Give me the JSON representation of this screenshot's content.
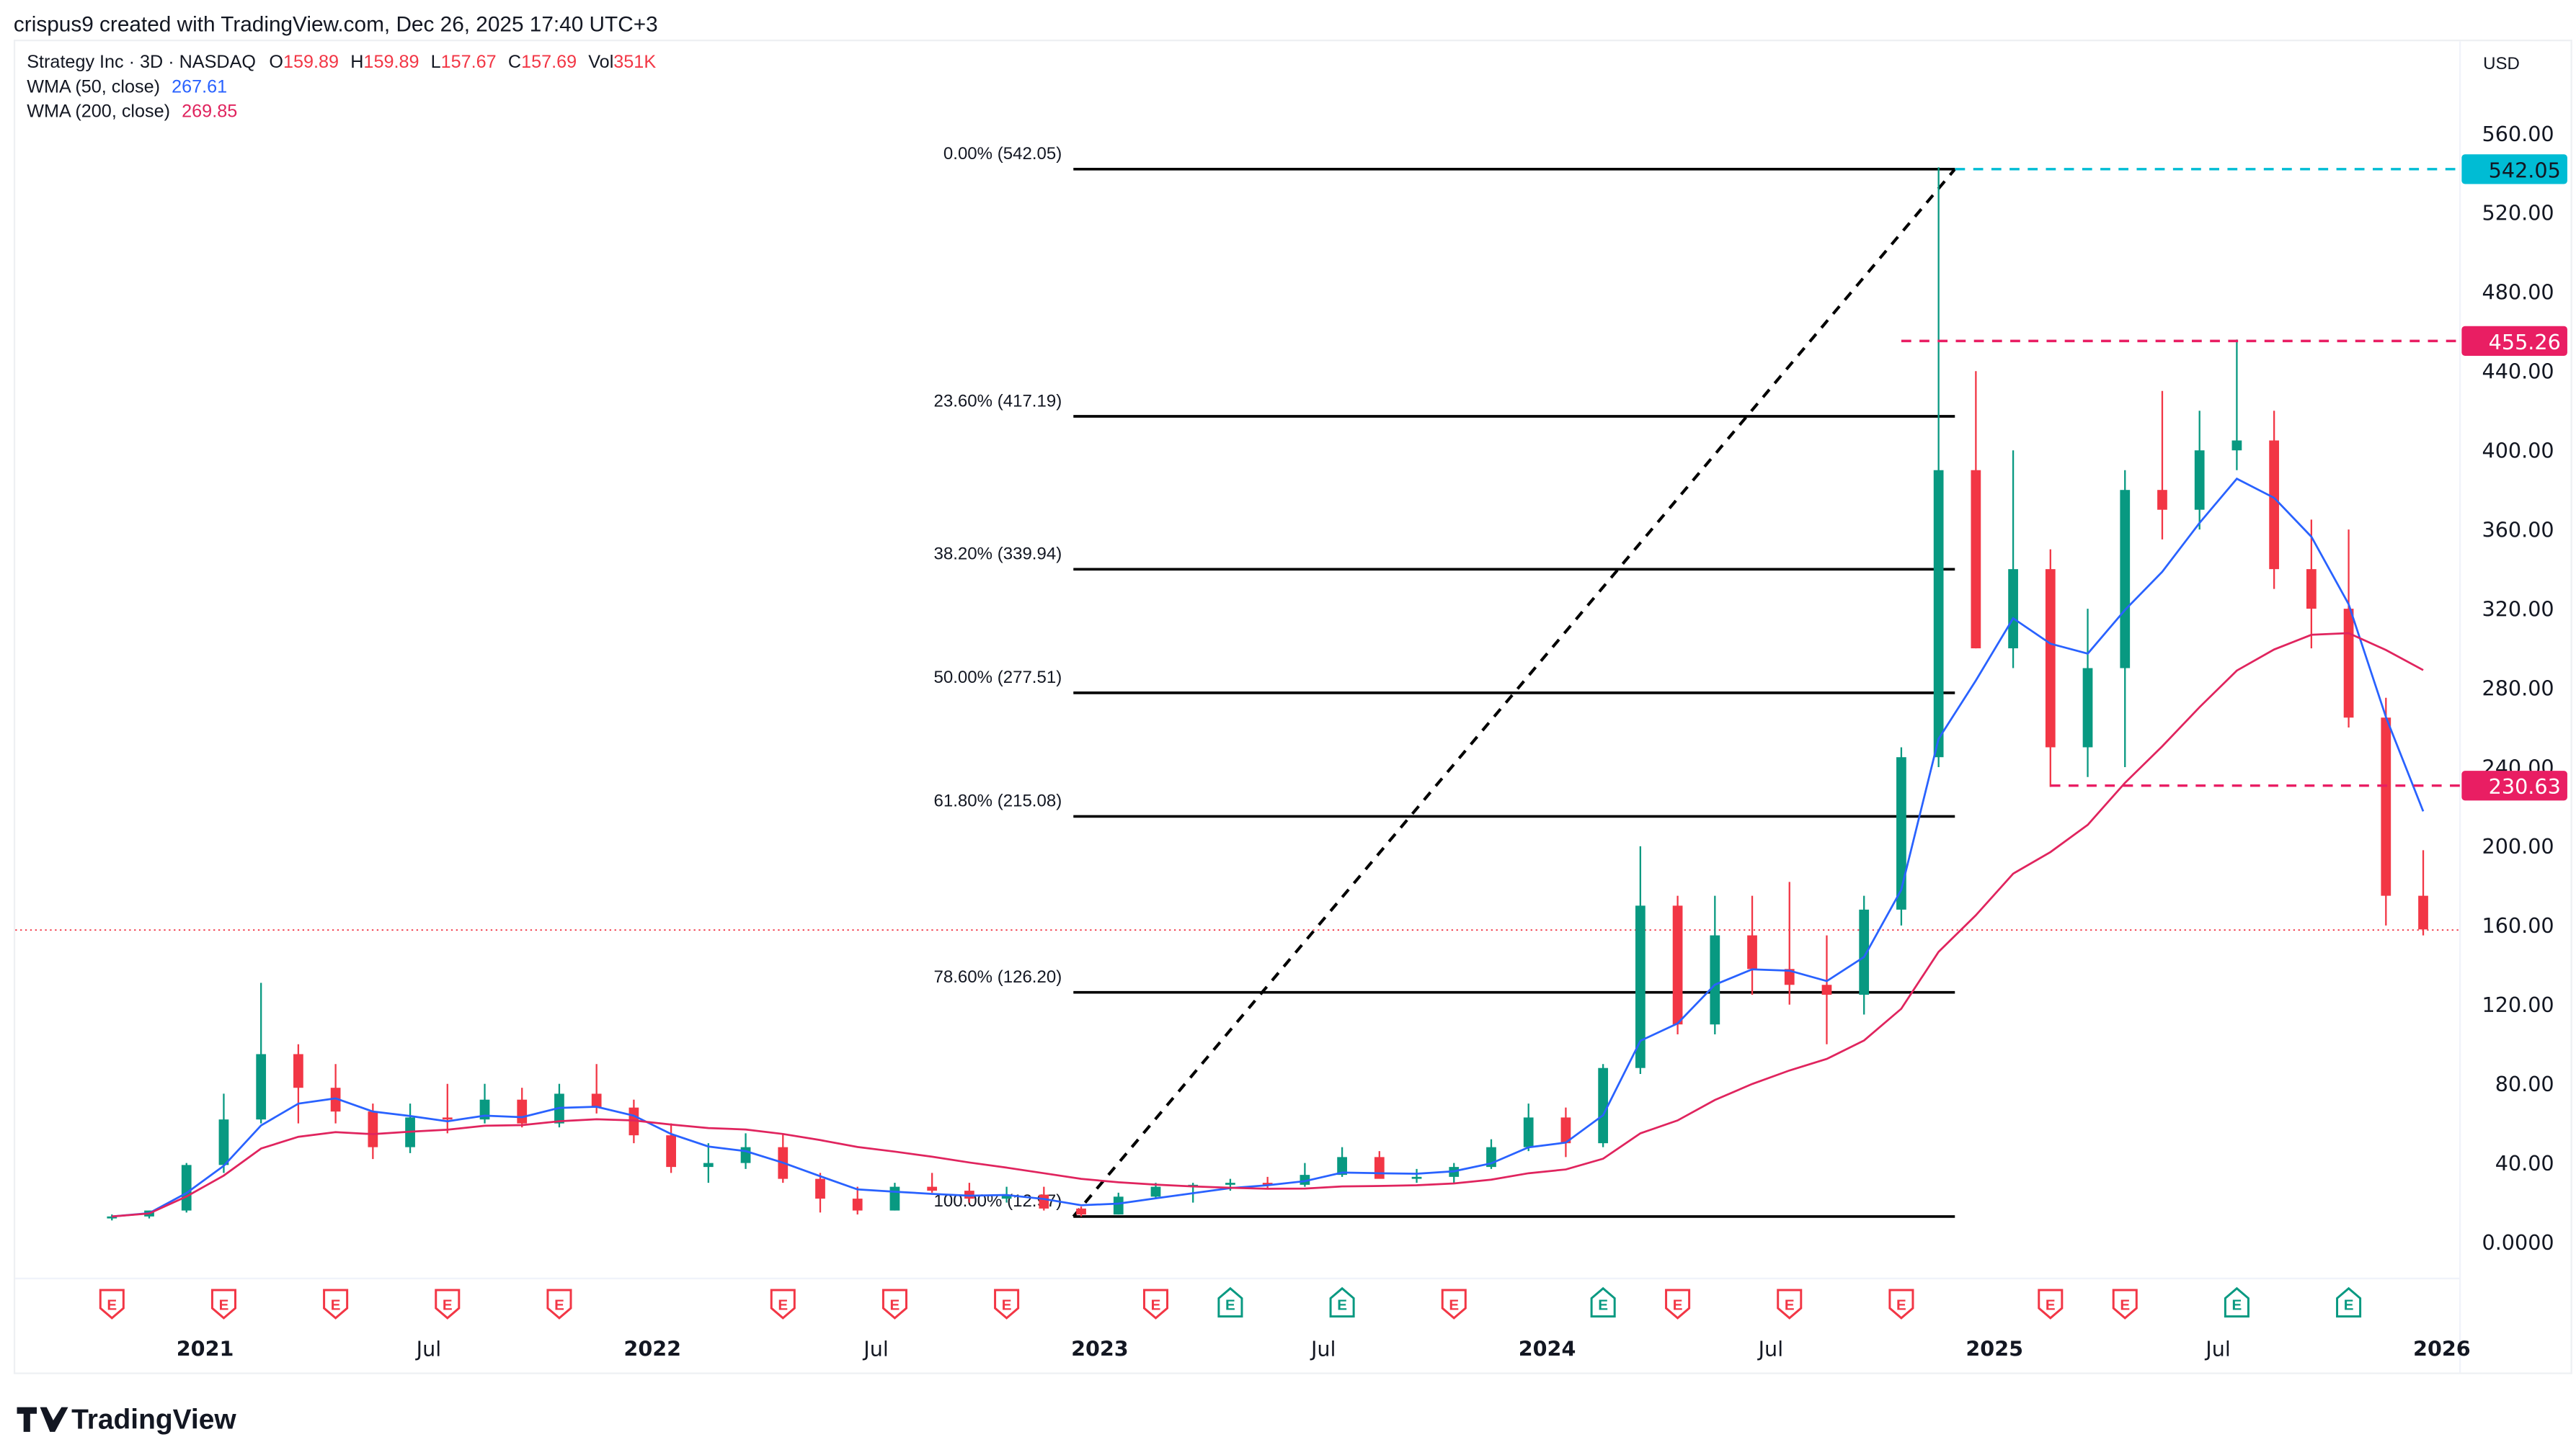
{
  "header": {
    "credit": "crispus9 created with TradingView.com, Dec 26, 2025 17:40 UTC+3",
    "symbol": "Strategy Inc · 3D · NASDAQ",
    "o_label": "O",
    "o": "159.89",
    "h_label": "H",
    "h": "159.89",
    "l_label": "L",
    "l": "157.67",
    "c_label": "C",
    "c": "157.69",
    "vol_label": "Vol",
    "vol": "351K",
    "wma50_label": "WMA (50, close)",
    "wma50_value": "267.61",
    "wma200_label": "WMA (200, close)",
    "wma200_value": "269.85",
    "currency": "USD"
  },
  "logo": {
    "text": "TradingView"
  },
  "colors": {
    "up": "#089981",
    "down": "#f23645",
    "wma50": "#2962ff",
    "wma200": "#e0245e",
    "fib_top_badge": "#00bcd4",
    "level_badge": "#e91e63"
  },
  "chart_data": {
    "type": "candlestick",
    "title": "",
    "ylim": [
      -10,
      575
    ],
    "y_ticks": [
      "560.00",
      "520.00",
      "480.00",
      "440.00",
      "400.00",
      "360.00",
      "320.00",
      "280.00",
      "240.00",
      "200.00",
      "160.00",
      "120.00",
      "80.00",
      "40.00",
      "0.0000"
    ],
    "y_tick_values": [
      560,
      520,
      480,
      440,
      400,
      360,
      320,
      280,
      240,
      200,
      160,
      120,
      80,
      40,
      0
    ],
    "x_ticks": [
      {
        "label": "2021",
        "date": "2021-01",
        "bold": true
      },
      {
        "label": "Jul",
        "date": "2021-07",
        "bold": false
      },
      {
        "label": "2022",
        "date": "2022-01",
        "bold": true
      },
      {
        "label": "Jul",
        "date": "2022-07",
        "bold": false
      },
      {
        "label": "2023",
        "date": "2023-01",
        "bold": true
      },
      {
        "label": "Jul",
        "date": "2023-07",
        "bold": false
      },
      {
        "label": "2024",
        "date": "2024-01",
        "bold": true
      },
      {
        "label": "Jul",
        "date": "2024-07",
        "bold": false
      },
      {
        "label": "2025",
        "date": "2025-01",
        "bold": true
      },
      {
        "label": "Jul",
        "date": "2025-07",
        "bold": false
      },
      {
        "label": "2026",
        "date": "2026-01",
        "bold": true
      }
    ],
    "ohlc": [
      [
        "2020-10",
        12,
        14,
        11,
        13
      ],
      [
        "2020-11",
        13,
        16,
        12,
        16
      ],
      [
        "2020-12",
        16,
        40,
        15,
        39
      ],
      [
        "2021-01",
        39,
        75,
        35,
        62
      ],
      [
        "2021-02",
        62,
        131,
        60,
        95
      ],
      [
        "2021-03",
        95,
        100,
        60,
        78
      ],
      [
        "2021-04",
        78,
        90,
        60,
        66
      ],
      [
        "2021-05",
        66,
        70,
        42,
        48
      ],
      [
        "2021-06",
        48,
        70,
        45,
        63
      ],
      [
        "2021-07",
        63,
        80,
        55,
        62
      ],
      [
        "2021-08",
        62,
        80,
        60,
        72
      ],
      [
        "2021-09",
        72,
        78,
        58,
        60
      ],
      [
        "2021-10",
        60,
        80,
        58,
        75
      ],
      [
        "2021-11",
        75,
        90,
        65,
        68
      ],
      [
        "2021-12",
        68,
        72,
        50,
        54
      ],
      [
        "2022-01",
        54,
        60,
        35,
        38
      ],
      [
        "2022-02",
        38,
        50,
        30,
        40
      ],
      [
        "2022-03",
        40,
        55,
        37,
        48
      ],
      [
        "2022-04",
        48,
        55,
        30,
        32
      ],
      [
        "2022-05",
        32,
        35,
        15,
        22
      ],
      [
        "2022-06",
        22,
        28,
        14,
        16
      ],
      [
        "2022-07",
        16,
        30,
        16,
        28
      ],
      [
        "2022-08",
        28,
        35,
        25,
        26
      ],
      [
        "2022-09",
        26,
        30,
        20,
        22
      ],
      [
        "2022-10",
        22,
        28,
        20,
        24
      ],
      [
        "2022-11",
        24,
        28,
        16,
        17
      ],
      [
        "2022-12",
        17,
        18,
        13,
        14
      ],
      [
        "2023-01",
        14,
        25,
        14,
        23
      ],
      [
        "2023-02",
        23,
        30,
        22,
        28
      ],
      [
        "2023-03",
        28,
        30,
        20,
        29
      ],
      [
        "2023-04",
        29,
        32,
        26,
        30
      ],
      [
        "2023-05",
        30,
        33,
        27,
        29
      ],
      [
        "2023-06",
        29,
        40,
        28,
        34
      ],
      [
        "2023-07",
        34,
        48,
        33,
        43
      ],
      [
        "2023-08",
        43,
        46,
        33,
        32
      ],
      [
        "2023-09",
        32,
        37,
        30,
        33
      ],
      [
        "2023-10",
        33,
        40,
        30,
        38
      ],
      [
        "2023-11",
        38,
        52,
        37,
        48
      ],
      [
        "2023-12",
        48,
        70,
        46,
        63
      ],
      [
        "2024-01",
        63,
        68,
        43,
        50
      ],
      [
        "2024-02",
        50,
        90,
        48,
        88
      ],
      [
        "2024-03",
        88,
        200,
        85,
        170
      ],
      [
        "2024-04",
        170,
        175,
        105,
        110
      ],
      [
        "2024-05",
        110,
        175,
        105,
        155
      ],
      [
        "2024-06",
        155,
        175,
        125,
        138
      ],
      [
        "2024-07",
        138,
        182,
        120,
        130
      ],
      [
        "2024-08",
        130,
        155,
        100,
        125
      ],
      [
        "2024-09",
        125,
        175,
        115,
        168
      ],
      [
        "2024-10",
        168,
        250,
        160,
        245
      ],
      [
        "2024-11",
        245,
        543,
        240,
        390
      ],
      [
        "2024-12",
        390,
        440,
        300,
        300
      ],
      [
        "2025-01",
        300,
        400,
        290,
        340
      ],
      [
        "2025-02",
        340,
        350,
        230,
        250
      ],
      [
        "2025-03",
        250,
        320,
        235,
        290
      ],
      [
        "2025-04",
        290,
        390,
        240,
        380
      ],
      [
        "2025-05",
        380,
        430,
        355,
        370
      ],
      [
        "2025-06",
        370,
        420,
        360,
        400
      ],
      [
        "2025-07",
        400,
        456,
        390,
        405
      ],
      [
        "2025-08",
        405,
        420,
        330,
        340
      ],
      [
        "2025-09",
        340,
        365,
        300,
        320
      ],
      [
        "2025-10",
        320,
        360,
        260,
        265
      ],
      [
        "2025-11",
        265,
        275,
        160,
        175
      ],
      [
        "2025-12",
        175,
        198,
        155,
        158
      ]
    ],
    "last_price": 157.69,
    "fib_retracement": {
      "from": {
        "date": "2022-12",
        "price": 12.97
      },
      "to": {
        "date": "2024-11",
        "price": 542.05
      },
      "levels": [
        {
          "label": "0.00% (542.05)",
          "price": 542.05
        },
        {
          "label": "23.60% (417.19)",
          "price": 417.19
        },
        {
          "label": "38.20% (339.94)",
          "price": 339.94
        },
        {
          "label": "50.00% (277.51)",
          "price": 277.51
        },
        {
          "label": "61.80% (215.08)",
          "price": 215.08
        },
        {
          "label": "78.60% (126.20)",
          "price": 126.2
        },
        {
          "label": "100.00% (12.97)",
          "price": 12.97
        }
      ]
    },
    "horizontal_levels": [
      {
        "label": "542.05",
        "price": 542.05,
        "color": "#00bcd4",
        "from": "2024-11"
      },
      {
        "label": "455.26",
        "price": 455.26,
        "color": "#e91e63",
        "from": "2024-10"
      },
      {
        "label": "230.63",
        "price": 230.63,
        "color": "#e91e63",
        "from": "2025-02"
      }
    ],
    "earnings": [
      {
        "date": "2020-10",
        "beat": false
      },
      {
        "date": "2021-01",
        "beat": false
      },
      {
        "date": "2021-04",
        "beat": false
      },
      {
        "date": "2021-07",
        "beat": false
      },
      {
        "date": "2021-10",
        "beat": false
      },
      {
        "date": "2022-04",
        "beat": false
      },
      {
        "date": "2022-07",
        "beat": false
      },
      {
        "date": "2022-10",
        "beat": false
      },
      {
        "date": "2023-02",
        "beat": false
      },
      {
        "date": "2023-04",
        "beat": true
      },
      {
        "date": "2023-07",
        "beat": true
      },
      {
        "date": "2023-10",
        "beat": false
      },
      {
        "date": "2024-02",
        "beat": true
      },
      {
        "date": "2024-04",
        "beat": false
      },
      {
        "date": "2024-07",
        "beat": false
      },
      {
        "date": "2024-10",
        "beat": false
      },
      {
        "date": "2025-02",
        "beat": false
      },
      {
        "date": "2025-04",
        "beat": false
      },
      {
        "date": "2025-07",
        "beat": true
      },
      {
        "date": "2025-10",
        "beat": true
      }
    ],
    "earnings_label": "E"
  }
}
